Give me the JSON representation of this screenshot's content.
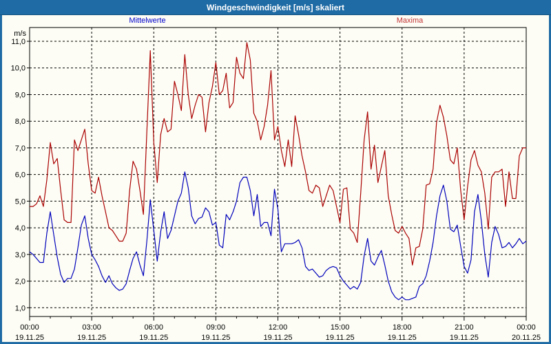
{
  "window": {
    "title": "Windgeschwindigkeit [m/s] skaliert",
    "titlebar_color": "#1f6ba5",
    "border_color": "#1f6ba5",
    "background_color": "#fdfdf5"
  },
  "legend": {
    "mean_label": "Mittelwerte",
    "mean_color": "#0000cc",
    "max_label": "Maxima",
    "max_color": "#c23434"
  },
  "axes": {
    "y_unit_label": "m/s",
    "y_tick_labels": [
      "11,0",
      "10,0",
      "9,0",
      "8,0",
      "7,0",
      "6,0",
      "5,0",
      "4,0",
      "3,0",
      "2,0",
      "1,0"
    ],
    "y_tick_values": [
      11,
      10,
      9,
      8,
      7,
      6,
      5,
      4,
      3,
      2,
      1
    ],
    "x_ticks": [
      {
        "time": "00:00",
        "date": "19.11.25"
      },
      {
        "time": "03:00",
        "date": "19.11.25"
      },
      {
        "time": "06:00",
        "date": "19.11.25"
      },
      {
        "time": "09:00",
        "date": "19.11.25"
      },
      {
        "time": "12:00",
        "date": "19.11.25"
      },
      {
        "time": "15:00",
        "date": "19.11.25"
      },
      {
        "time": "18:00",
        "date": "19.11.25"
      },
      {
        "time": "21:00",
        "date": "19.11.25"
      },
      {
        "time": "00:00",
        "date": "20.11.25"
      }
    ]
  },
  "chart_data": {
    "type": "line",
    "title": "Windgeschwindigkeit [m/s] skaliert",
    "ylabel": "m/s",
    "ylim": [
      1,
      11
    ],
    "x_start": "19.11.25 00:00",
    "x_end": "20.11.25 00:00",
    "x_step_minutes": 10,
    "grid": "dashed, horizontal every 1 m/s, vertical every 3 h",
    "legend_position": "top",
    "series": [
      {
        "name": "Mittelwerte",
        "color": "#0000bb",
        "values": [
          3.1,
          3.0,
          2.85,
          2.7,
          2.7,
          3.8,
          4.6,
          3.75,
          2.9,
          2.25,
          1.95,
          2.1,
          2.1,
          2.45,
          3.25,
          4.1,
          4.45,
          3.6,
          3.0,
          2.8,
          2.55,
          2.2,
          1.95,
          2.2,
          1.9,
          1.75,
          1.65,
          1.7,
          1.9,
          2.4,
          2.85,
          3.1,
          2.6,
          2.2,
          3.5,
          5.05,
          3.9,
          2.75,
          3.85,
          4.6,
          3.6,
          3.9,
          4.45,
          5.0,
          5.3,
          6.1,
          5.5,
          4.45,
          4.15,
          4.35,
          4.4,
          4.75,
          4.6,
          4.1,
          4.2,
          3.35,
          3.25,
          4.5,
          4.3,
          4.6,
          5.0,
          5.7,
          5.9,
          5.9,
          5.4,
          4.45,
          5.25,
          4.05,
          4.2,
          4.2,
          3.7,
          5.45,
          4.7,
          3.1,
          3.4,
          3.4,
          3.4,
          3.45,
          3.55,
          3.25,
          2.55,
          2.4,
          2.45,
          2.3,
          2.15,
          2.2,
          2.4,
          2.5,
          2.55,
          2.5,
          2.2,
          2.0,
          1.85,
          1.7,
          1.8,
          1.7,
          1.95,
          2.95,
          3.6,
          2.75,
          2.6,
          2.9,
          3.15,
          2.6,
          2.0,
          1.6,
          1.4,
          1.3,
          1.4,
          1.3,
          1.3,
          1.35,
          1.4,
          1.8,
          1.9,
          2.2,
          2.75,
          3.45,
          4.45,
          5.2,
          5.6,
          5.0,
          3.95,
          3.85,
          4.1,
          3.3,
          2.55,
          2.3,
          2.8,
          4.6,
          5.25,
          4.25,
          3.0,
          2.15,
          3.45,
          4.05,
          3.75,
          3.25,
          3.3,
          3.45,
          3.25,
          3.4,
          3.6,
          3.4,
          3.5
        ]
      },
      {
        "name": "Maxima",
        "color": "#aa0000",
        "values": [
          4.8,
          4.8,
          4.9,
          5.2,
          4.8,
          5.8,
          7.2,
          6.4,
          6.6,
          5.4,
          4.3,
          4.2,
          4.2,
          7.3,
          6.9,
          7.3,
          7.7,
          6.4,
          5.4,
          5.3,
          5.9,
          5.2,
          4.6,
          4.0,
          3.9,
          3.7,
          3.5,
          3.5,
          3.8,
          5.4,
          6.5,
          6.2,
          5.4,
          4.5,
          7.6,
          10.65,
          7.2,
          5.7,
          7.5,
          8.1,
          7.6,
          7.7,
          9.5,
          9.0,
          8.4,
          10.5,
          9.0,
          8.1,
          8.6,
          9.0,
          8.9,
          7.6,
          8.7,
          9.3,
          10.2,
          9.0,
          9.15,
          9.8,
          8.5,
          8.7,
          10.4,
          9.8,
          9.6,
          10.95,
          10.3,
          8.3,
          8.0,
          7.3,
          7.8,
          8.6,
          9.9,
          7.3,
          7.8,
          6.9,
          6.3,
          7.3,
          6.3,
          8.2,
          7.5,
          6.7,
          6.1,
          5.4,
          5.3,
          5.6,
          5.5,
          4.8,
          5.2,
          5.6,
          5.4,
          4.8,
          4.2,
          5.45,
          5.5,
          3.95,
          3.8,
          3.45,
          5.3,
          7.3,
          8.35,
          6.2,
          7.1,
          5.7,
          6.3,
          6.9,
          5.2,
          4.5,
          3.9,
          3.8,
          4.05,
          3.8,
          3.6,
          2.6,
          3.25,
          3.3,
          3.95,
          5.6,
          5.65,
          6.2,
          7.95,
          8.6,
          8.15,
          7.45,
          6.55,
          6.4,
          7.0,
          5.4,
          4.3,
          5.55,
          6.55,
          6.9,
          6.35,
          6.1,
          5.3,
          3.95,
          5.9,
          6.1,
          6.1,
          6.2,
          4.8,
          6.1,
          5.1,
          5.1,
          6.7,
          7.0,
          7.0
        ]
      }
    ]
  }
}
